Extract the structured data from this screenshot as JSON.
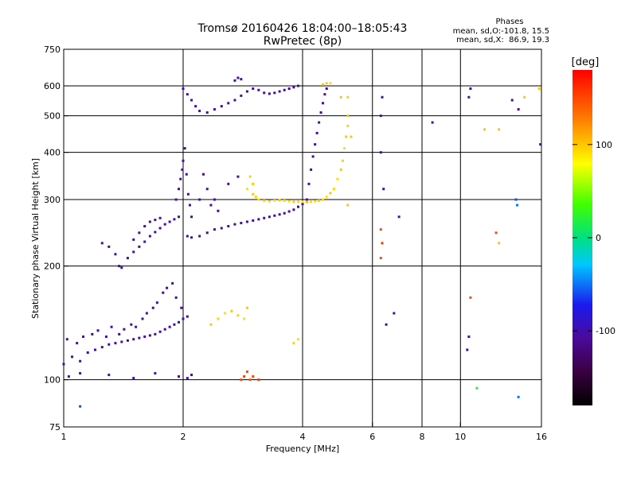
{
  "title": "Tromsø 20160426 18:04:00–18:05:43",
  "subtitle": "RwPretec (8p)",
  "phases_box": {
    "heading": "Phases",
    "line1": "mean, sd,O:-101.8, 15.5",
    "line2": "mean, sd,X:  86.9, 19.3"
  },
  "colorbar": {
    "unit": "[deg]",
    "range": [
      -180,
      180
    ],
    "ticks": [
      {
        "value": 100,
        "label": "100"
      },
      {
        "value": 0,
        "label": "0"
      },
      {
        "value": -100,
        "label": "-100"
      }
    ]
  },
  "chart_data": {
    "type": "scatter",
    "xlabel": "Frequency [MHz]",
    "ylabel": "Stationary phase Virtual Height [km]",
    "x_scale": "log",
    "y_scale": "log",
    "xlim": [
      1,
      16
    ],
    "ylim": [
      75,
      750
    ],
    "x_ticks": [
      {
        "value": 1,
        "label": "1"
      },
      {
        "value": 2,
        "label": "2"
      },
      {
        "value": 4,
        "label": "4"
      },
      {
        "value": 6,
        "label": "6"
      },
      {
        "value": 8,
        "label": "8"
      },
      {
        "value": 10,
        "label": "10"
      },
      {
        "value": 16,
        "label": "16"
      }
    ],
    "y_ticks": [
      {
        "value": 75,
        "label": "75"
      },
      {
        "value": 100,
        "label": "100"
      },
      {
        "value": 200,
        "label": "200"
      },
      {
        "value": 300,
        "label": "300"
      },
      {
        "value": 400,
        "label": "400"
      },
      {
        "value": 500,
        "label": "500"
      },
      {
        "value": 600,
        "label": "600"
      },
      {
        "value": 750,
        "label": "750"
      }
    ],
    "grid_x": [
      2,
      4,
      6,
      8,
      10
    ],
    "grid_y": [
      100,
      200,
      300,
      400,
      500,
      600
    ],
    "grid": true,
    "color_by": "phase [deg]",
    "series": [
      {
        "values": [
          [
            1.0,
            110,
            -100
          ],
          [
            1.05,
            115,
            -110
          ],
          [
            1.1,
            112,
            -100
          ],
          [
            1.15,
            118,
            -105
          ],
          [
            1.2,
            120,
            -100
          ],
          [
            1.25,
            122,
            -110
          ],
          [
            1.3,
            124,
            -100
          ],
          [
            1.35,
            125,
            -105
          ],
          [
            1.4,
            126,
            -100
          ],
          [
            1.45,
            127,
            -110
          ],
          [
            1.5,
            128,
            -100
          ],
          [
            1.55,
            129,
            -105
          ],
          [
            1.6,
            130,
            -100
          ],
          [
            1.65,
            131,
            -110
          ],
          [
            1.7,
            132,
            -100
          ],
          [
            1.75,
            134,
            -105
          ],
          [
            1.8,
            136,
            -100
          ],
          [
            1.85,
            138,
            -110
          ],
          [
            1.9,
            140,
            -100
          ],
          [
            1.95,
            142,
            -105
          ],
          [
            2.0,
            145,
            -100
          ],
          [
            2.05,
            147,
            -110
          ],
          [
            1.02,
            128,
            -100
          ],
          [
            1.08,
            125,
            -105
          ],
          [
            1.12,
            130,
            -100
          ],
          [
            1.18,
            132,
            -110
          ],
          [
            1.22,
            135,
            -100
          ],
          [
            1.28,
            130,
            -105
          ],
          [
            1.32,
            138,
            -100
          ],
          [
            1.38,
            132,
            -110
          ],
          [
            1.42,
            136,
            -100
          ],
          [
            1.48,
            140,
            -105
          ],
          [
            1.52,
            138,
            -100
          ],
          [
            1.58,
            145,
            -110
          ],
          [
            1.62,
            150,
            -100
          ],
          [
            1.68,
            155,
            -105
          ],
          [
            1.72,
            160,
            -100
          ],
          [
            1.78,
            170,
            -110
          ],
          [
            1.82,
            175,
            -100
          ],
          [
            1.88,
            180,
            -105
          ],
          [
            1.92,
            165,
            -100
          ],
          [
            1.98,
            155,
            -110
          ],
          [
            1.03,
            102,
            -100
          ],
          [
            1.1,
            104,
            -105
          ],
          [
            1.3,
            103,
            -100
          ],
          [
            1.5,
            101,
            -110
          ],
          [
            1.7,
            104,
            -100
          ],
          [
            1.95,
            102,
            -105
          ],
          [
            2.05,
            101,
            -100
          ],
          [
            2.1,
            103,
            -110
          ]
        ]
      },
      {
        "values": [
          [
            1.25,
            230,
            -100
          ],
          [
            1.3,
            225,
            -105
          ],
          [
            1.35,
            215,
            -100
          ],
          [
            1.38,
            200,
            -110
          ],
          [
            1.4,
            198,
            -100
          ],
          [
            1.45,
            210,
            -105
          ],
          [
            1.5,
            218,
            -100
          ],
          [
            1.55,
            225,
            -110
          ],
          [
            1.6,
            232,
            -100
          ],
          [
            1.65,
            240,
            -105
          ],
          [
            1.7,
            246,
            -100
          ],
          [
            1.75,
            252,
            -110
          ],
          [
            1.8,
            258,
            -100
          ],
          [
            1.85,
            262,
            -105
          ],
          [
            1.9,
            266,
            -100
          ],
          [
            1.95,
            270,
            -110
          ],
          [
            1.5,
            235,
            -100
          ],
          [
            1.55,
            245,
            -105
          ],
          [
            1.6,
            255,
            -100
          ],
          [
            1.65,
            262,
            -110
          ],
          [
            1.7,
            265,
            -100
          ],
          [
            1.75,
            268,
            -105
          ]
        ]
      },
      {
        "values": [
          [
            1.92,
            300,
            -100
          ],
          [
            1.95,
            320,
            -105
          ],
          [
            1.97,
            340,
            -100
          ],
          [
            1.99,
            360,
            -110
          ],
          [
            2.0,
            380,
            -100
          ],
          [
            2.02,
            410,
            -105
          ],
          [
            2.04,
            350,
            -100
          ],
          [
            2.06,
            310,
            -110
          ],
          [
            2.08,
            290,
            -100
          ],
          [
            2.1,
            270,
            -105
          ],
          [
            2.2,
            300,
            -100
          ],
          [
            2.25,
            350,
            -110
          ],
          [
            2.3,
            320,
            -100
          ],
          [
            2.35,
            290,
            -105
          ],
          [
            2.4,
            300,
            -100
          ],
          [
            2.45,
            280,
            -110
          ],
          [
            2.05,
            240,
            -100
          ],
          [
            2.1,
            238,
            -105
          ],
          [
            2.2,
            240,
            -100
          ],
          [
            2.3,
            245,
            -110
          ],
          [
            2.4,
            250,
            -100
          ],
          [
            2.5,
            252,
            -105
          ],
          [
            2.6,
            255,
            -100
          ],
          [
            2.7,
            258,
            -110
          ],
          [
            2.8,
            260,
            -100
          ],
          [
            2.9,
            262,
            -105
          ],
          [
            3.0,
            264,
            -100
          ],
          [
            3.1,
            266,
            -110
          ],
          [
            3.2,
            268,
            -100
          ],
          [
            3.3,
            270,
            -105
          ],
          [
            3.4,
            272,
            -100
          ],
          [
            3.5,
            274,
            -110
          ],
          [
            3.6,
            276,
            -100
          ],
          [
            3.7,
            279,
            -105
          ],
          [
            3.8,
            282,
            -100
          ],
          [
            3.9,
            287,
            -110
          ],
          [
            4.0,
            292,
            -100
          ],
          [
            4.1,
            296,
            -105
          ],
          [
            2.6,
            330,
            -100
          ],
          [
            2.75,
            345,
            -105
          ]
        ]
      },
      {
        "values": [
          [
            2.0,
            590,
            -100
          ],
          [
            2.05,
            570,
            -105
          ],
          [
            2.1,
            550,
            -100
          ],
          [
            2.15,
            530,
            -110
          ],
          [
            2.2,
            515,
            -100
          ],
          [
            2.3,
            510,
            -105
          ],
          [
            2.4,
            520,
            -100
          ],
          [
            2.5,
            530,
            -110
          ],
          [
            2.6,
            540,
            -100
          ],
          [
            2.7,
            550,
            -105
          ],
          [
            2.8,
            565,
            -100
          ],
          [
            2.9,
            580,
            -110
          ],
          [
            3.0,
            590,
            -100
          ],
          [
            3.1,
            585,
            -105
          ],
          [
            3.2,
            575,
            -100
          ],
          [
            3.3,
            572,
            -110
          ],
          [
            3.4,
            575,
            -100
          ],
          [
            3.5,
            580,
            -105
          ],
          [
            3.6,
            585,
            -100
          ],
          [
            3.7,
            590,
            -110
          ],
          [
            3.8,
            595,
            -100
          ],
          [
            3.9,
            600,
            -105
          ],
          [
            2.7,
            620,
            -100
          ],
          [
            2.75,
            630,
            -105
          ],
          [
            2.8,
            625,
            -100
          ]
        ]
      },
      {
        "values": [
          [
            4.1,
            300,
            -100
          ],
          [
            4.15,
            330,
            -105
          ],
          [
            4.2,
            360,
            -100
          ],
          [
            4.25,
            390,
            -110
          ],
          [
            4.3,
            420,
            -100
          ],
          [
            4.35,
            450,
            -105
          ],
          [
            4.4,
            480,
            -100
          ],
          [
            4.45,
            510,
            -110
          ],
          [
            4.5,
            540,
            -100
          ],
          [
            4.55,
            570,
            -105
          ],
          [
            4.6,
            590,
            -100
          ]
        ]
      },
      {
        "values": [
          [
            3.0,
            310,
            100
          ],
          [
            3.05,
            305,
            95
          ],
          [
            3.1,
            300,
            90
          ],
          [
            3.2,
            298,
            100
          ],
          [
            3.3,
            297,
            95
          ],
          [
            3.4,
            298,
            90
          ],
          [
            3.5,
            299,
            100
          ],
          [
            3.6,
            298,
            95
          ],
          [
            3.7,
            297,
            90
          ],
          [
            3.8,
            296,
            100
          ],
          [
            3.9,
            296,
            95
          ],
          [
            4.0,
            296,
            90
          ],
          [
            4.1,
            296,
            100
          ],
          [
            4.2,
            296,
            95
          ],
          [
            4.3,
            297,
            90
          ],
          [
            4.4,
            298,
            100
          ],
          [
            4.5,
            300,
            95
          ],
          [
            4.6,
            305,
            90
          ],
          [
            4.7,
            312,
            100
          ],
          [
            4.8,
            320,
            95
          ],
          [
            4.9,
            340,
            90
          ],
          [
            5.0,
            360,
            100
          ],
          [
            5.05,
            380,
            95
          ],
          [
            5.1,
            410,
            90
          ],
          [
            5.15,
            440,
            100
          ],
          [
            5.2,
            470,
            95
          ],
          [
            3.0,
            330,
            100
          ],
          [
            2.95,
            345,
            95
          ],
          [
            2.9,
            320,
            90
          ],
          [
            2.35,
            140,
            100
          ],
          [
            2.45,
            145,
            95
          ],
          [
            2.55,
            150,
            90
          ],
          [
            2.65,
            152,
            100
          ],
          [
            2.75,
            148,
            95
          ],
          [
            2.85,
            145,
            90
          ],
          [
            2.9,
            155,
            100
          ],
          [
            3.8,
            125,
            95
          ],
          [
            3.9,
            128,
            90
          ],
          [
            4.5,
            605,
            100
          ],
          [
            4.6,
            610,
            95
          ],
          [
            4.7,
            610,
            90
          ],
          [
            5.0,
            560,
            100
          ],
          [
            5.2,
            560,
            95
          ]
        ]
      },
      {
        "values": [
          [
            2.8,
            100,
            150
          ],
          [
            2.85,
            102,
            155
          ],
          [
            2.9,
            105,
            150
          ],
          [
            2.95,
            100,
            145
          ],
          [
            3.0,
            102,
            150
          ],
          [
            3.1,
            100,
            155
          ]
        ]
      },
      {
        "values": [
          [
            6.3,
            250,
            150
          ],
          [
            6.35,
            230,
            155
          ],
          [
            6.3,
            210,
            150
          ],
          [
            6.4,
            320,
            -100
          ],
          [
            6.3,
            400,
            -105
          ],
          [
            6.3,
            500,
            -100
          ],
          [
            6.35,
            560,
            -105
          ],
          [
            6.8,
            150,
            -100
          ],
          [
            6.5,
            140,
            -105
          ],
          [
            10.5,
            560,
            -100
          ],
          [
            10.6,
            590,
            -105
          ],
          [
            10.5,
            130,
            -100
          ],
          [
            10.4,
            120,
            -105
          ],
          [
            10.6,
            165,
            150
          ],
          [
            13.5,
            550,
            -100
          ],
          [
            14.0,
            520,
            -105
          ],
          [
            14.5,
            560,
            100
          ],
          [
            15.8,
            590,
            100
          ],
          [
            15.9,
            420,
            -100
          ],
          [
            11.5,
            460,
            100
          ],
          [
            12.5,
            460,
            100
          ],
          [
            12.5,
            230,
            100
          ],
          [
            12.3,
            245,
            150
          ],
          [
            13.8,
            300,
            -60
          ],
          [
            13.9,
            290,
            -50
          ],
          [
            11.0,
            95,
            20
          ],
          [
            8.5,
            480,
            -100
          ],
          [
            7.0,
            270,
            -80
          ],
          [
            5.2,
            290,
            100
          ],
          [
            5.3,
            440,
            100
          ],
          [
            5.2,
            500,
            100
          ],
          [
            14.0,
            90,
            -50
          ],
          [
            1.1,
            85,
            -60
          ]
        ]
      }
    ]
  }
}
